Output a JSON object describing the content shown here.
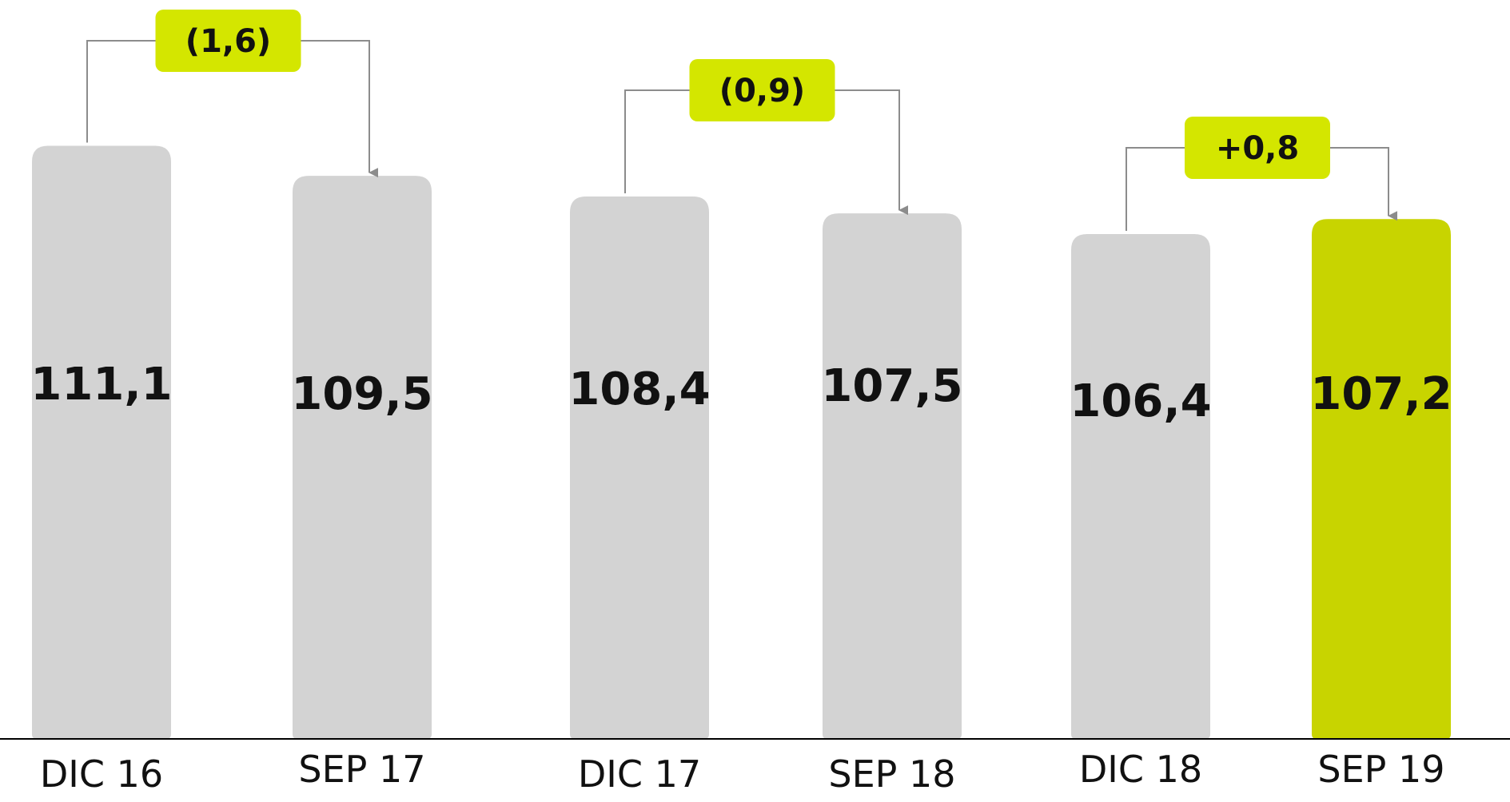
{
  "chart_data": {
    "type": "bar",
    "categories": [
      "DIC 16",
      "SEP 17",
      "DIC 17",
      "SEP 18",
      "DIC 18",
      "SEP 19"
    ],
    "values": [
      111.1,
      109.5,
      108.4,
      107.5,
      106.4,
      107.2
    ],
    "value_labels": [
      "111,1",
      "109,5",
      "108,4",
      "107,5",
      "106,4",
      "107,2"
    ],
    "highlight_index": 5,
    "deltas": [
      {
        "from": 0,
        "to": 1,
        "label": "(1,6)"
      },
      {
        "from": 2,
        "to": 3,
        "label": "(0,9)"
      },
      {
        "from": 4,
        "to": 5,
        "label": "+0,8"
      }
    ],
    "title": "",
    "xlabel": "",
    "ylabel": "",
    "grid": false,
    "legend": "none"
  },
  "colors": {
    "bar": "#d3d3d3",
    "highlight": "#c8d400",
    "delta_box": "#d4e600",
    "connector": "#8c8c8c",
    "baseline": "#000000",
    "text": "#111111"
  }
}
